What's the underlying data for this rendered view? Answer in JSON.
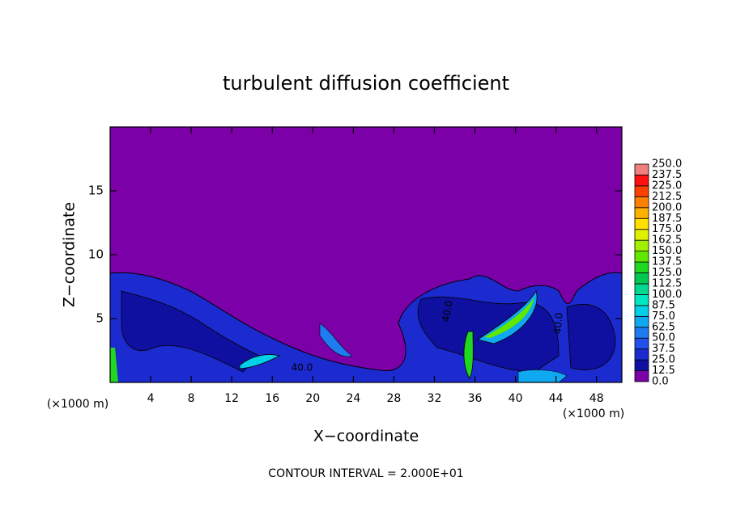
{
  "chart_data": {
    "type": "contour",
    "title": "turbulent diffusion coefficient",
    "x_label": "X−coordinate",
    "y_label": "Z−coordinate",
    "x_unit": "(×1000 m)",
    "y_unit": "(×1000 m)",
    "footer": "CONTOUR INTERVAL = 2.000E+01",
    "xlim": [
      0,
      50.5
    ],
    "xticks": [
      4,
      8,
      12,
      16,
      20,
      24,
      28,
      32,
      36,
      40,
      44,
      48
    ],
    "ylim": [
      0,
      20
    ],
    "yticks": [
      5,
      10,
      15
    ],
    "contour_labels": [
      "40.0",
      "40.0",
      "40.0"
    ],
    "colorbar": {
      "ticks": [
        {
          "value": 0,
          "label": "0.0"
        },
        12.5,
        {
          "value": 25,
          "label": "25.0"
        },
        37.5,
        {
          "value": 50,
          "label": "50.0"
        },
        62.5,
        {
          "value": 75,
          "label": "75.0"
        },
        87.5,
        {
          "value": 100,
          "label": "100.0"
        },
        112.5,
        {
          "value": 125,
          "label": "125.0"
        },
        137.5,
        {
          "value": 150,
          "label": "150.0"
        },
        162.5,
        {
          "value": 175,
          "label": "175.0"
        },
        187.5,
        {
          "value": 200,
          "label": "200.0"
        },
        212.5,
        {
          "value": 225,
          "label": "225.0"
        },
        237.5,
        {
          "value": 250,
          "label": "250.0"
        }
      ],
      "colors": [
        "#7b00a8",
        "#1010a0",
        "#1c2bd0",
        "#2050e8",
        "#1e7cf0",
        "#10a8f0",
        "#00d0e8",
        "#00e8c0",
        "#00d890",
        "#00c850",
        "#20d820",
        "#60e800",
        "#a0f000",
        "#e0f000",
        "#ffe000",
        "#ffb000",
        "#ff8000",
        "#ff4000",
        "#ff1010",
        "#f08080"
      ]
    }
  }
}
